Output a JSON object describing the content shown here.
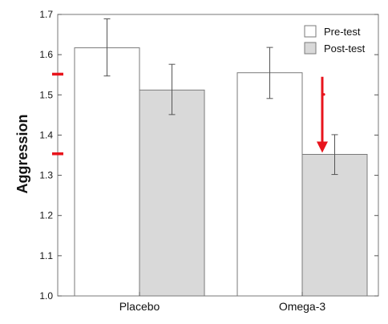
{
  "chart_data": {
    "type": "bar",
    "title": "",
    "xlabel": "",
    "ylabel": "Aggression",
    "ylim": [
      1.0,
      1.7
    ],
    "yticks": [
      1.0,
      1.1,
      1.2,
      1.3,
      1.4,
      1.5,
      1.6,
      1.7
    ],
    "ytick_labels": [
      "1.0",
      "1.1",
      "1.2",
      "1.3",
      "1.4",
      "1.5",
      "1.6",
      "1.7"
    ],
    "categories": [
      "Placebo",
      "Omega-3"
    ],
    "series": [
      {
        "name": "Pre-test",
        "values": [
          1.617,
          1.555
        ],
        "error_low": [
          1.547,
          1.491
        ],
        "error_high": [
          1.689,
          1.618
        ],
        "color": "#ffffff"
      },
      {
        "name": "Post-test",
        "values": [
          1.512,
          1.352
        ],
        "error_low": [
          1.451,
          1.302
        ],
        "error_high": [
          1.576,
          1.401
        ],
        "color": "#d9d9d9"
      }
    ],
    "legend_position": "top-right",
    "grid": false,
    "annotations": {
      "y_markers": [
        1.552,
        1.354
      ],
      "marker_color": "#e8141c",
      "arrow": {
        "category": "Omega-3",
        "from": 1.545,
        "to": 1.356,
        "color": "#e8141c"
      }
    }
  }
}
